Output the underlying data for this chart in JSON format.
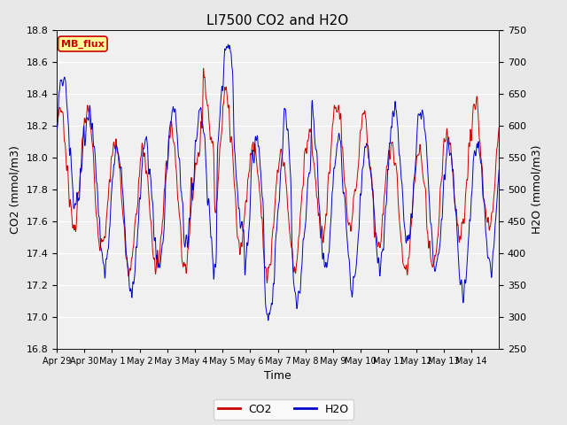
{
  "title": "LI7500 CO2 and H2O",
  "xlabel": "Time",
  "ylabel_left": "CO2 (mmol/m3)",
  "ylabel_right": "H2O (mmol/m3)",
  "xlim_labels": [
    "Apr 29",
    "Apr 30",
    "May 1",
    "May 2",
    "May 3",
    "May 4",
    "May 5",
    "May 6",
    "May 7",
    "May 8",
    "May 9",
    "May 10",
    "May 11",
    "May 12",
    "May 13",
    "May 14"
  ],
  "ylim_left": [
    16.8,
    18.8
  ],
  "ylim_right": [
    250,
    750
  ],
  "yticks_left": [
    16.8,
    17.0,
    17.2,
    17.4,
    17.6,
    17.8,
    18.0,
    18.2,
    18.4,
    18.6,
    18.8
  ],
  "yticks_right": [
    250,
    300,
    350,
    400,
    450,
    500,
    550,
    600,
    650,
    700,
    750
  ],
  "co2_color": "#cc0000",
  "h2o_color": "#0000cc",
  "background_color": "#e8e8e8",
  "plot_bg_color": "#f0f0f0",
  "grid_color": "#ffffff",
  "annotation_text": "MB_flux",
  "annotation_bg": "#ffff99",
  "annotation_border": "#cc0000",
  "legend_co2": "CO2",
  "legend_h2o": "H2O",
  "title_fontsize": 11,
  "label_fontsize": 9,
  "tick_fontsize": 8
}
